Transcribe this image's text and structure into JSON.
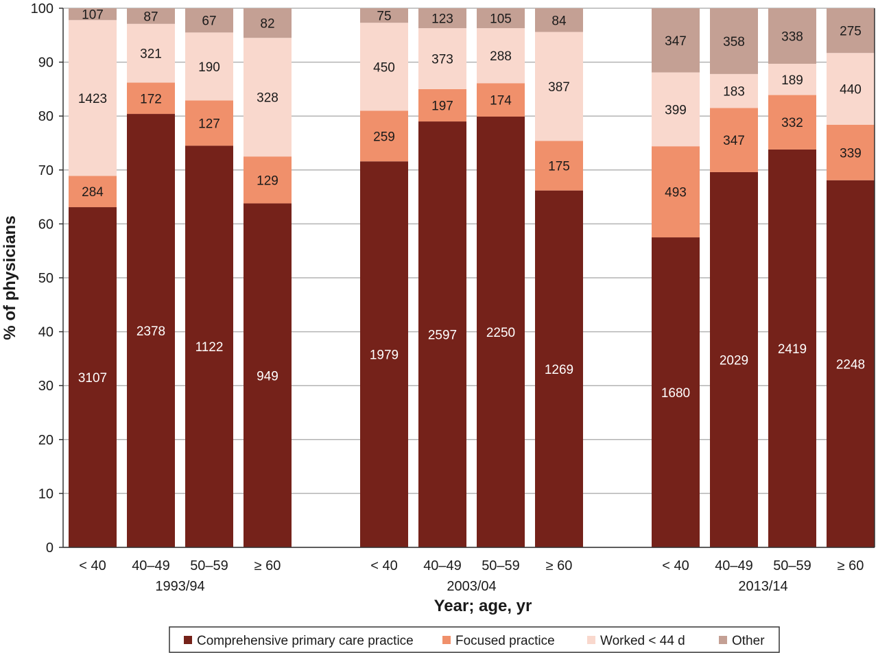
{
  "chart_data": {
    "type": "bar",
    "stacked": true,
    "title": "",
    "xlabel": "Year; age, yr",
    "ylabel": "% of physicians",
    "ylim": [
      0,
      100
    ],
    "yticks": [
      0,
      10,
      20,
      30,
      40,
      50,
      60,
      70,
      80,
      90,
      100
    ],
    "grid": true,
    "legend_position": "bottom",
    "groups": [
      "1993/94",
      "2003/04",
      "2013/14"
    ],
    "categories": [
      "< 40",
      "40–49",
      "50–59",
      "≥ 60"
    ],
    "series": [
      {
        "name": "Comprehensive primary care practice",
        "color": "#75221a",
        "label_color": "#ffffff",
        "counts": [
          [
            3107,
            2378,
            1122,
            949
          ],
          [
            1979,
            2597,
            2250,
            1269
          ],
          [
            1680,
            2029,
            2419,
            2248
          ]
        ],
        "values": [
          [
            63.1,
            80.4,
            74.5,
            63.8
          ],
          [
            71.6,
            79.0,
            79.9,
            66.2
          ],
          [
            57.5,
            69.6,
            73.8,
            68.1
          ]
        ]
      },
      {
        "name": "Focused practice",
        "color": "#f0906b",
        "label_color": "#1a1a1a",
        "counts": [
          [
            284,
            172,
            127,
            129
          ],
          [
            259,
            197,
            174,
            175
          ],
          [
            493,
            347,
            332,
            339
          ]
        ],
        "values": [
          [
            5.8,
            5.8,
            8.4,
            8.7
          ],
          [
            9.4,
            6.0,
            6.2,
            9.2
          ],
          [
            16.9,
            11.9,
            10.1,
            10.3
          ]
        ]
      },
      {
        "name": "Worked < 44 d",
        "color": "#f9d8cd",
        "label_color": "#1a1a1a",
        "counts": [
          [
            1423,
            321,
            190,
            328
          ],
          [
            450,
            373,
            288,
            387
          ],
          [
            399,
            183,
            189,
            440
          ]
        ],
        "values": [
          [
            28.9,
            10.9,
            12.6,
            22.0
          ],
          [
            16.3,
            11.3,
            10.2,
            20.2
          ],
          [
            13.7,
            6.3,
            5.8,
            13.3
          ]
        ]
      },
      {
        "name": "Other",
        "color": "#c4a094",
        "label_color": "#1a1a1a",
        "counts": [
          [
            107,
            87,
            67,
            82
          ],
          [
            75,
            123,
            105,
            84
          ],
          [
            347,
            358,
            338,
            275
          ]
        ],
        "values": [
          [
            2.2,
            2.9,
            4.5,
            5.5
          ],
          [
            2.7,
            3.7,
            3.7,
            4.4
          ],
          [
            11.9,
            12.2,
            10.3,
            8.3
          ]
        ]
      }
    ]
  }
}
